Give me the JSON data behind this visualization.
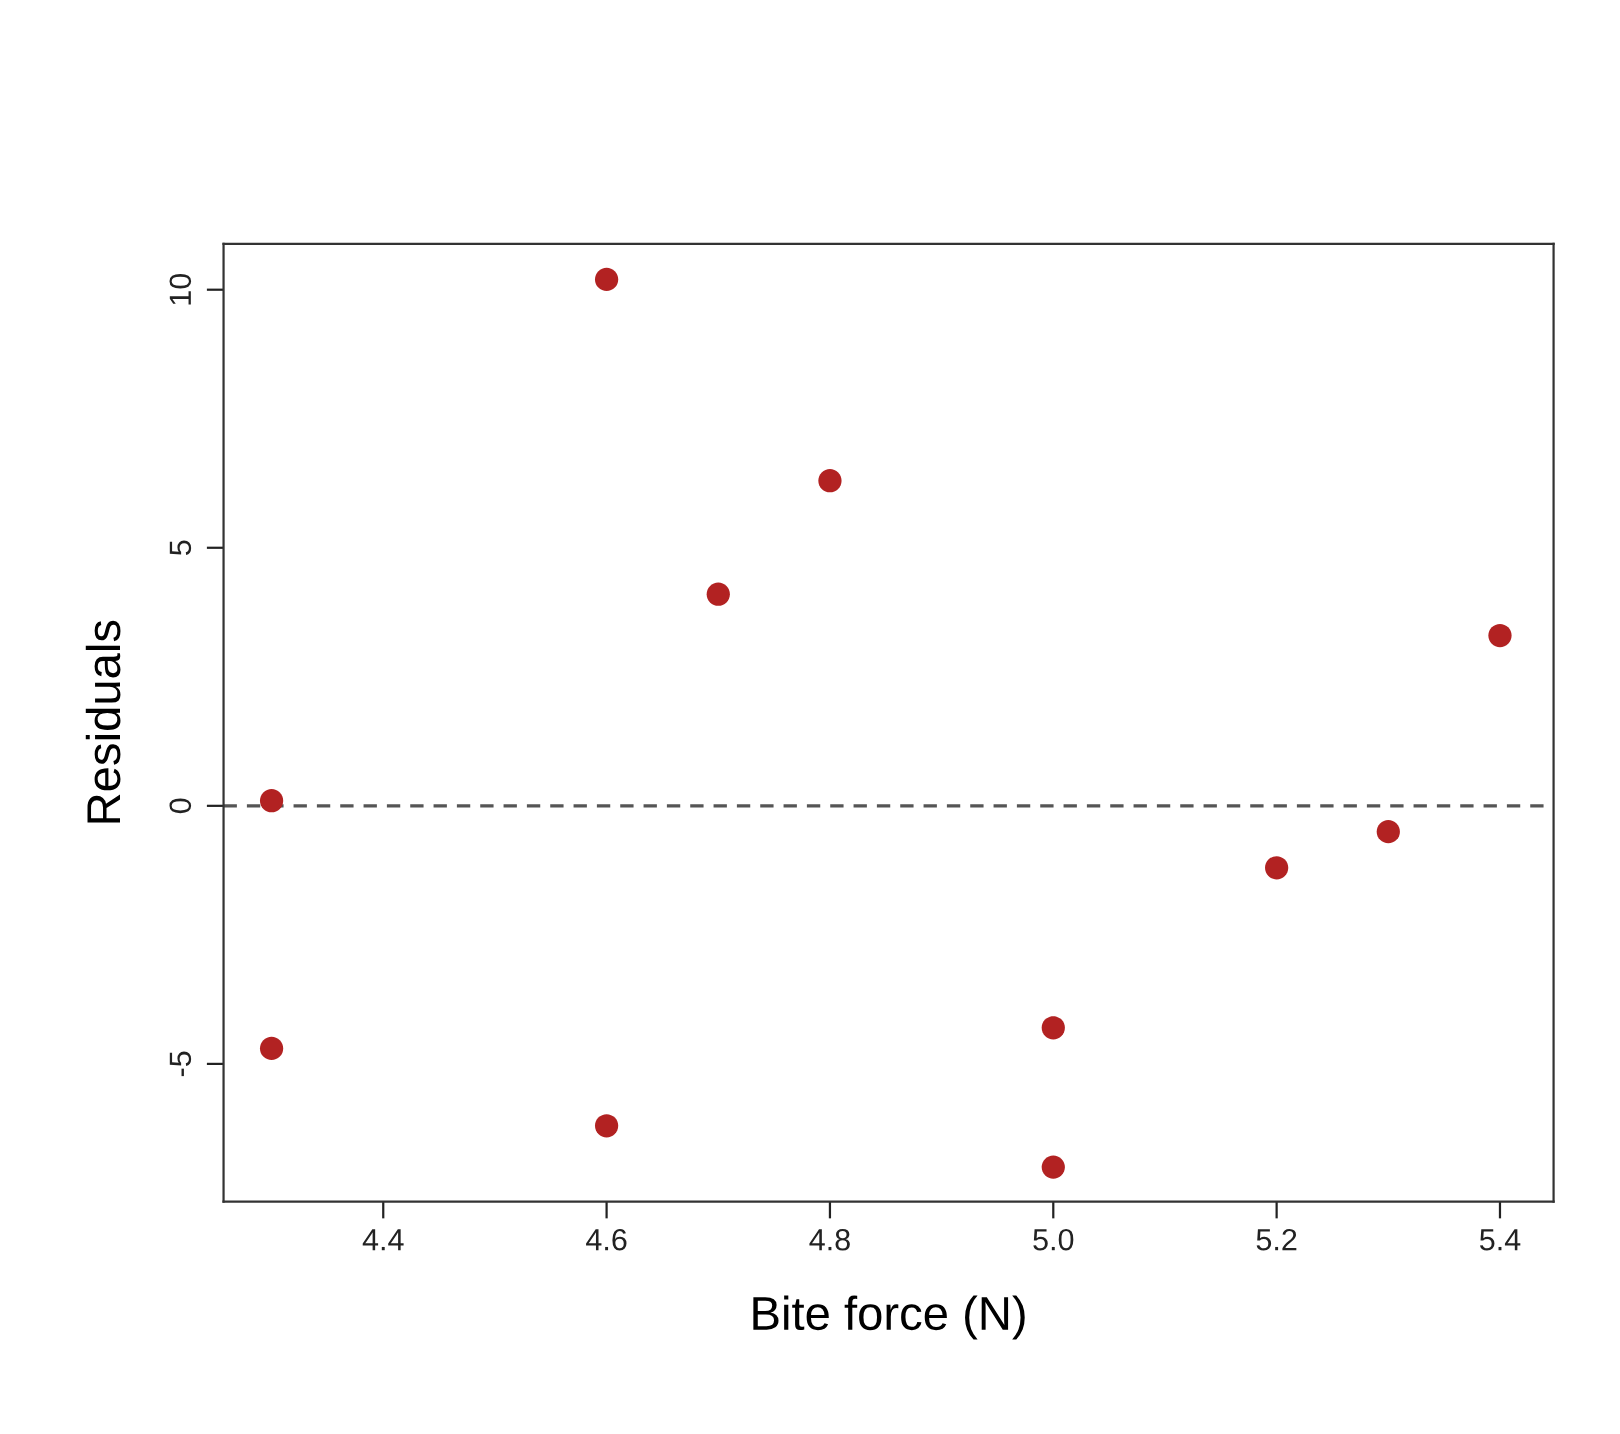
{
  "chart_data": {
    "type": "scatter",
    "xlabel": "Bite force (N)",
    "ylabel": "Residuals",
    "x": [
      4.3,
      4.3,
      4.6,
      4.6,
      4.7,
      4.8,
      5.0,
      5.0,
      5.2,
      5.3,
      5.4
    ],
    "series": [
      {
        "color": "#b22222",
        "values": [
          0.1,
          -4.7,
          10.2,
          -6.2,
          4.1,
          6.3,
          -4.3,
          -7.0,
          -1.2,
          -0.5,
          3.3
        ]
      }
    ],
    "xlim": [
      4.257,
      5.448
    ],
    "ylim": [
      -7.67,
      10.89
    ],
    "xticks": [
      {
        "value": 4.4,
        "label": "4.4"
      },
      {
        "value": 4.6,
        "label": "4.6"
      },
      {
        "value": 4.8,
        "label": "4.8"
      },
      {
        "value": 5.0,
        "label": "5.0"
      },
      {
        "value": 5.2,
        "label": "5.2"
      },
      {
        "value": 5.4,
        "label": "5.4"
      }
    ],
    "yticks": [
      -5,
      0,
      5,
      10
    ],
    "ref_lines": [
      {
        "axis": "y",
        "value": 0,
        "color": "#555555",
        "line_style": "dashed"
      }
    ],
    "marker": "circle",
    "grid": false
  }
}
